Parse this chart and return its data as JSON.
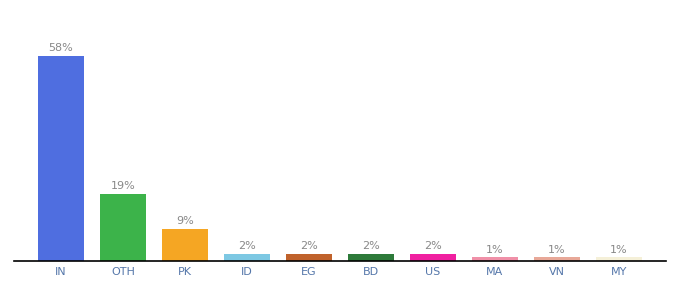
{
  "categories": [
    "IN",
    "OTH",
    "PK",
    "ID",
    "EG",
    "BD",
    "US",
    "MA",
    "VN",
    "MY"
  ],
  "values": [
    58,
    19,
    9,
    2,
    2,
    2,
    2,
    1,
    1,
    1
  ],
  "bar_colors": [
    "#4F6EE0",
    "#3CB34A",
    "#F5A623",
    "#7DC8E3",
    "#C0622B",
    "#2D7A3A",
    "#F020A0",
    "#F090A8",
    "#E8A898",
    "#F5F0D8"
  ],
  "label_fontsize": 8,
  "tick_fontsize": 8,
  "tick_color": "#5577AA",
  "label_color": "#888888",
  "background_color": "#ffffff",
  "ylim": [
    0,
    68
  ],
  "bar_width": 0.75
}
